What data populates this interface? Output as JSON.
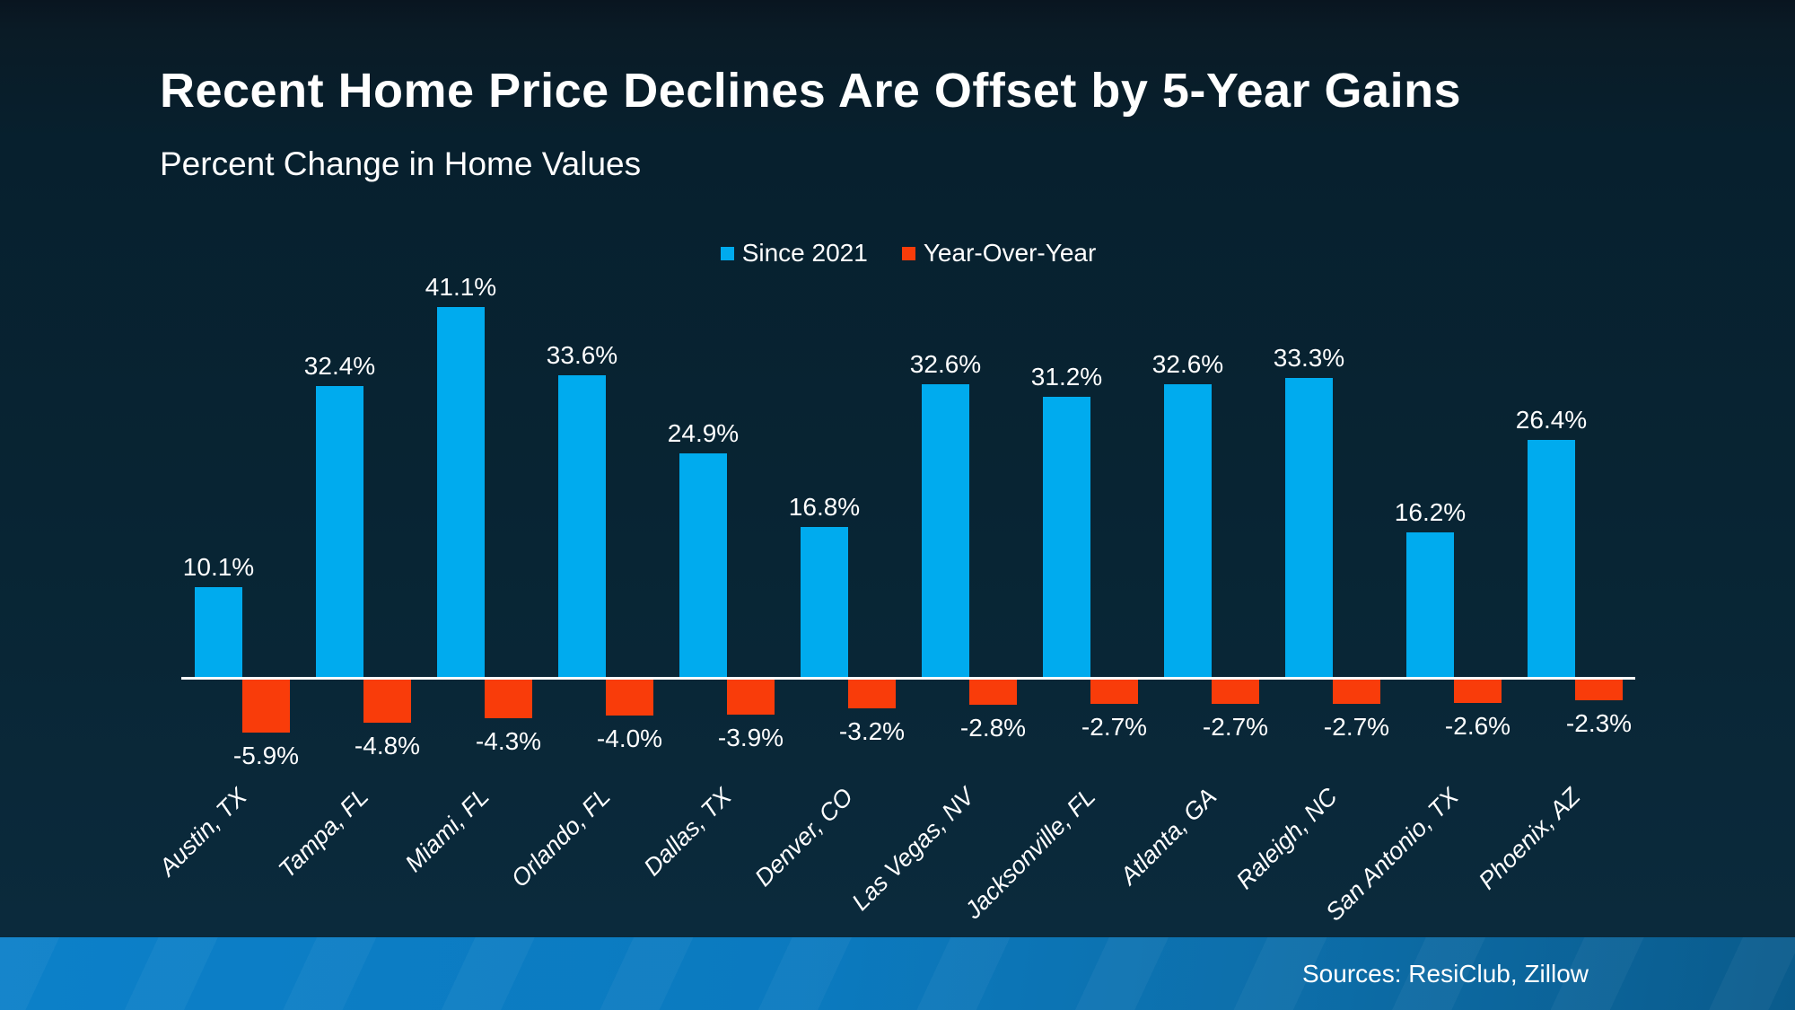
{
  "title": "Recent Home Price Declines Are Offset by 5-Year Gains",
  "subtitle": "Percent Change in Home Values",
  "footer": {
    "sources": "Sources: ResiClub, Zillow"
  },
  "colors": {
    "since_2021": "#00ABEE",
    "year_over_year": "#F93C0A",
    "background_top": "#07202E",
    "background_bottom": "#0B2B3E",
    "axis_line": "#FFFFFF",
    "text": "#FFFFFF",
    "footer_left": "#0C80C9",
    "footer_right": "#0A5B8C"
  },
  "chart_data": {
    "type": "bar",
    "title": "Recent Home Price Declines Are Offset by 5-Year Gains",
    "subtitle": "Percent Change in Home Values",
    "categories": [
      "Austin, TX",
      "Tampa, FL",
      "Miami, FL",
      "Orlando, FL",
      "Dallas, TX",
      "Denver, CO",
      "Las Vegas, NV",
      "Jacksonville, FL",
      "Atlanta, GA",
      "Raleigh, NC",
      "San Antonio, TX",
      "Phoenix, AZ"
    ],
    "series": [
      {
        "name": "Since 2021",
        "color": "#00ABEE",
        "values": [
          10.1,
          32.4,
          41.1,
          33.6,
          24.9,
          16.8,
          32.6,
          31.2,
          32.6,
          33.3,
          16.2,
          26.4
        ],
        "labels": [
          "10.1%",
          "32.4%",
          "41.1%",
          "33.6%",
          "24.9%",
          "16.8%",
          "32.6%",
          "31.2%",
          "32.6%",
          "33.3%",
          "16.2%",
          "26.4%"
        ]
      },
      {
        "name": "Year-Over-Year",
        "color": "#F93C0A",
        "values": [
          -5.9,
          -4.8,
          -4.3,
          -4.0,
          -3.9,
          -3.2,
          -2.8,
          -2.7,
          -2.7,
          -2.7,
          -2.6,
          -2.3
        ],
        "labels": [
          "-5.9%",
          "-4.8%",
          "-4.3%",
          "-4.0%",
          "-3.9%",
          "-3.2%",
          "-2.8%",
          "-2.7%",
          "-2.7%",
          "-2.7%",
          "-2.6%",
          "-2.3%"
        ]
      }
    ],
    "xlabel": "",
    "ylabel": "",
    "ylim": [
      -8,
      45
    ],
    "grid": false,
    "legend_position": "top-center",
    "baseline": 0,
    "value_labels_shown": true
  }
}
